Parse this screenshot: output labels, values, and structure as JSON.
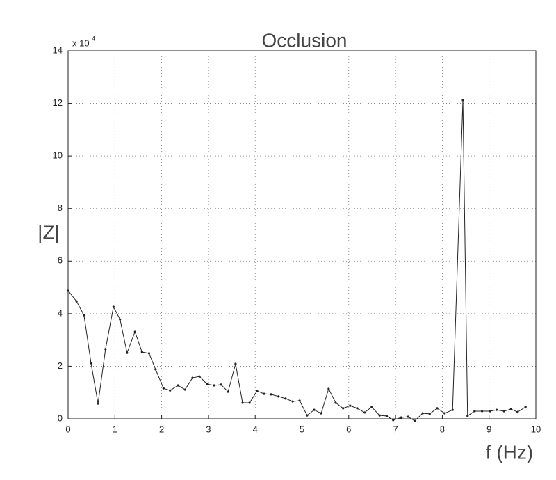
{
  "chart_data": {
    "type": "line",
    "title": "Occlusion",
    "x_label": "f (Hz)",
    "y_label": "|Z|",
    "y_multiplier_base": "x 10",
    "y_multiplier_exponent": "4",
    "x": [
      0,
      0.18,
      0.34,
      0.49,
      0.64,
      0.8,
      0.97,
      1.11,
      1.26,
      1.43,
      1.58,
      1.73,
      1.87,
      2.04,
      2.18,
      2.35,
      2.5,
      2.66,
      2.81,
      2.97,
      3.12,
      3.27,
      3.42,
      3.58,
      3.73,
      3.88,
      4.04,
      4.19,
      4.34,
      4.5,
      4.65,
      4.8,
      4.95,
      5.11,
      5.26,
      5.41,
      5.57,
      5.72,
      5.88,
      6.03,
      6.18,
      6.34,
      6.49,
      6.66,
      6.81,
      6.95,
      7.12,
      7.27,
      7.41,
      7.58,
      7.73,
      7.89,
      8.05,
      8.22,
      8.44,
      8.54,
      8.69,
      8.85,
      9.02,
      9.16,
      9.32,
      9.47,
      9.61,
      9.78
    ],
    "series": [
      {
        "name": "|Z|",
        "color": "#222222",
        "values": [
          4.87,
          4.47,
          3.94,
          2.12,
          0.58,
          2.65,
          4.26,
          3.78,
          2.51,
          3.31,
          2.54,
          2.49,
          1.88,
          1.16,
          1.08,
          1.27,
          1.11,
          1.56,
          1.61,
          1.32,
          1.27,
          1.3,
          1.03,
          2.09,
          0.61,
          0.61,
          1.06,
          0.95,
          0.93,
          0.85,
          0.77,
          0.66,
          0.69,
          0.13,
          0.34,
          0.21,
          1.14,
          0.61,
          0.4,
          0.5,
          0.4,
          0.24,
          0.45,
          0.13,
          0.11,
          -0.05,
          0.05,
          0.08,
          -0.08,
          0.21,
          0.19,
          0.4,
          0.21,
          0.34,
          12.12,
          0.11,
          0.29,
          0.29,
          0.29,
          0.34,
          0.29,
          0.37,
          0.26,
          0.45
        ]
      }
    ],
    "xlim": [
      0,
      10
    ],
    "xticks": [
      0,
      1,
      2,
      3,
      4,
      5,
      6,
      7,
      8,
      9,
      10
    ],
    "ylim": [
      0,
      14
    ],
    "yticks": [
      0,
      2,
      4,
      6,
      8,
      10,
      12,
      14
    ],
    "grid": true
  }
}
